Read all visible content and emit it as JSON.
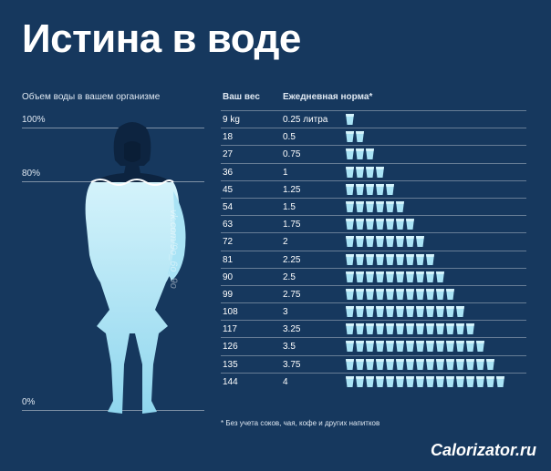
{
  "title": "Истина в воде",
  "left_header": "Объем воды в вашем организме",
  "percent_labels": [
    "100%",
    "80%",
    "0%"
  ],
  "watermark": "vk.com/9o_6o_9o",
  "table": {
    "weight_header": "Ваш вес",
    "norm_header": "Ежедневная норма*",
    "rows": [
      {
        "weight": "9 kg",
        "norm": "0.25 литра",
        "cups": 1
      },
      {
        "weight": "18",
        "norm": "0.5",
        "cups": 2
      },
      {
        "weight": "27",
        "norm": "0.75",
        "cups": 3
      },
      {
        "weight": "36",
        "norm": "1",
        "cups": 4
      },
      {
        "weight": "45",
        "norm": "1.25",
        "cups": 5
      },
      {
        "weight": "54",
        "norm": "1.5",
        "cups": 6
      },
      {
        "weight": "63",
        "norm": "1.75",
        "cups": 7
      },
      {
        "weight": "72",
        "norm": "2",
        "cups": 8
      },
      {
        "weight": "81",
        "norm": "2.25",
        "cups": 9
      },
      {
        "weight": "90",
        "norm": "2.5",
        "cups": 10
      },
      {
        "weight": "99",
        "norm": "2.75",
        "cups": 11
      },
      {
        "weight": "108",
        "norm": "3",
        "cups": 12
      },
      {
        "weight": "117",
        "norm": "3.25",
        "cups": 13
      },
      {
        "weight": "126",
        "norm": "3.5",
        "cups": 14
      },
      {
        "weight": "135",
        "norm": "3.75",
        "cups": 15
      },
      {
        "weight": "144",
        "norm": "4",
        "cups": 16
      }
    ]
  },
  "footnote": "* Без учета соков, чая, кофе и других напитков",
  "brand": "Calorizator.ru",
  "colors": {
    "background": "#16385e",
    "water": "#a9e3f5",
    "water_light": "#d4f3fb",
    "figure_dark": "#0d2440"
  },
  "icons": {
    "cup": "water-glass-icon"
  }
}
